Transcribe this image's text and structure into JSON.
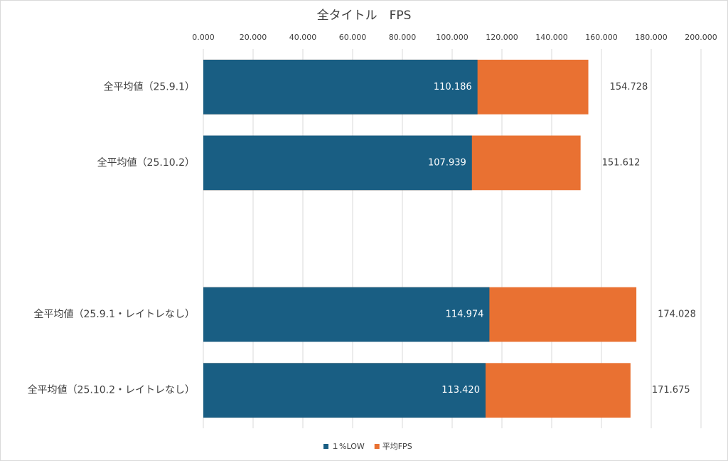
{
  "chart_data": {
    "type": "overlap-hbar",
    "title": "全タイトル　FPS",
    "categories": [
      "全平均値（25.9.1）",
      "全平均値（25.10.2）",
      null,
      "全平均値（25.9.1・レイトレなし）",
      "全平均値（25.10.2・レイトレなし）"
    ],
    "series": [
      {
        "name": "１%LOW",
        "color": "#195e83",
        "values": [
          110.186,
          107.939,
          null,
          114.974,
          113.42
        ],
        "value_labels": [
          "110.186",
          "107.939",
          null,
          "114.974",
          "113.420"
        ]
      },
      {
        "name": "平均FPS",
        "color": "#e97132",
        "values": [
          154.728,
          151.612,
          null,
          174.028,
          171.675
        ],
        "value_labels": [
          "154.728",
          "151.612",
          null,
          "174.028",
          "171.675"
        ]
      }
    ],
    "xlim": [
      0,
      200
    ],
    "xticks": [
      {
        "value": 0,
        "label": "0.000"
      },
      {
        "value": 20,
        "label": "20.000"
      },
      {
        "value": 40,
        "label": "40.000"
      },
      {
        "value": 60,
        "label": "60.000"
      },
      {
        "value": 80,
        "label": "80.000"
      },
      {
        "value": 100,
        "label": "100.000"
      },
      {
        "value": 120,
        "label": "120.000"
      },
      {
        "value": 140,
        "label": "140.000"
      },
      {
        "value": 160,
        "label": "160.000"
      },
      {
        "value": 180,
        "label": "180.000"
      },
      {
        "value": 200,
        "label": "200.000"
      }
    ],
    "grid": true,
    "legend": "bottom"
  }
}
